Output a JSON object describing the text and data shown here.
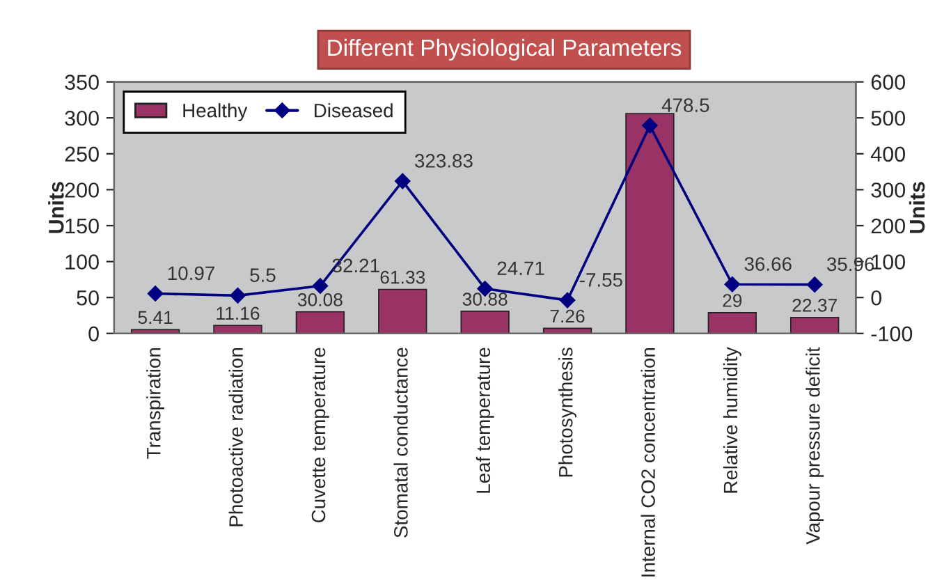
{
  "chart_data": {
    "type": "bar",
    "title": "Different Physiological Parameters",
    "ylabel": "Units",
    "y2label": "Units",
    "categories": [
      "Transpiration",
      "Photoactive radiation",
      "Cuvette temperature",
      "Stomatal conductance",
      "Leaf temperature",
      "Photosynthesis",
      "Internal CO2 concentration",
      "Relative humidity",
      "Vapour pressure deficit"
    ],
    "series": [
      {
        "name": "Healthy",
        "color": "#993366",
        "values": [
          5.41,
          11.16,
          30.08,
          61.33,
          30.88,
          7.26,
          306,
          29,
          22.37
        ],
        "value_labels": [
          "5.41",
          "11.16",
          "30.08",
          "61.33",
          "30.88",
          "7.26",
          null,
          "29",
          "22.37"
        ]
      },
      {
        "name": "Diseased",
        "type": "line",
        "axis": "y2",
        "color": "#000080",
        "marker": "diamond",
        "values": [
          10.97,
          5.5,
          32.21,
          323.83,
          24.71,
          -7.55,
          478.5,
          36.66,
          35.96
        ],
        "value_labels": [
          "10.97",
          "5.5",
          "32.21",
          "323.83",
          "24.71",
          "-7.55",
          "478.5",
          "36.66",
          "35.96"
        ]
      }
    ],
    "ylim": [
      0,
      350
    ],
    "yticks": [
      0,
      50,
      100,
      150,
      200,
      250,
      300,
      350
    ],
    "y2lim": [
      -100,
      600
    ],
    "y2ticks": [
      {
        "value": -100,
        "label": "-100"
      },
      0,
      100,
      200,
      300,
      400,
      500,
      600
    ],
    "legend": "top left"
  }
}
